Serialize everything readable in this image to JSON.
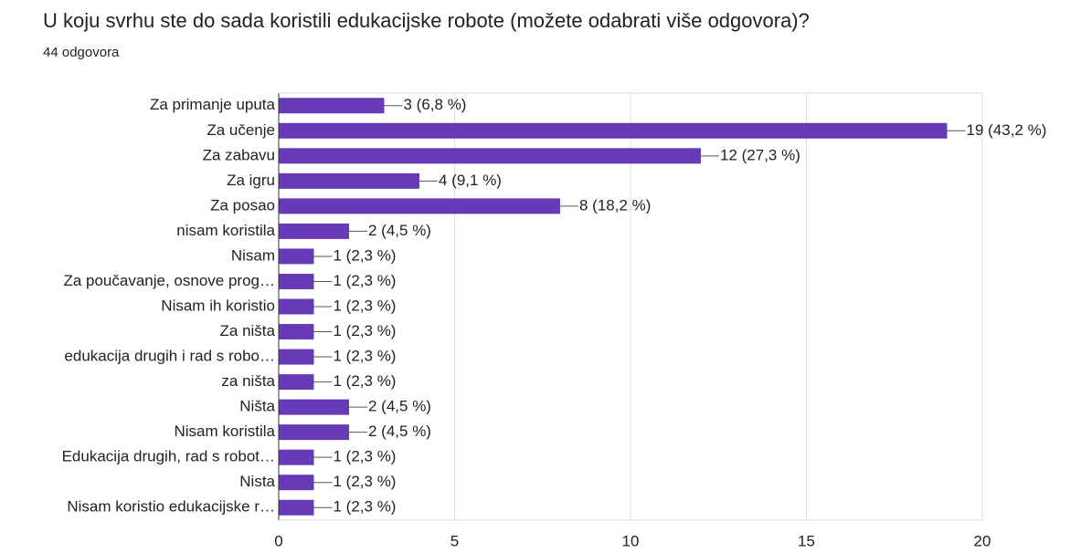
{
  "chart_data": {
    "type": "bar",
    "orientation": "horizontal",
    "title": "U koju svrhu ste do sada koristili edukacijske robote (možete odabrati više odgovora)?",
    "subtitle": "44 odgovora",
    "categories": [
      "Za primanje uputa",
      "Za učenje",
      "Za zabavu",
      "Za igru",
      "Za posao",
      "nisam koristila",
      "Nisam",
      "Za poučavanje, osnove prog…",
      "Nisam ih koristio",
      "Za ništa",
      "edukacija drugih i rad s robo…",
      "za ništa",
      "Ništa",
      "Nisam koristila",
      "Edukacija drugih, rad s robot…",
      "Nista",
      "Nisam koristio edukacijske r…"
    ],
    "values": [
      3,
      19,
      12,
      4,
      8,
      2,
      1,
      1,
      1,
      1,
      1,
      1,
      2,
      2,
      1,
      1,
      1
    ],
    "value_labels": [
      "3 (6,8 %)",
      "19 (43,2 %)",
      "12 (27,3 %)",
      "4 (9,1 %)",
      "8 (18,2 %)",
      "2 (4,5 %)",
      "1 (2,3 %)",
      "1 (2,3 %)",
      "1 (2,3 %)",
      "1 (2,3 %)",
      "1 (2,3 %)",
      "1 (2,3 %)",
      "2 (4,5 %)",
      "2 (4,5 %)",
      "1 (2,3 %)",
      "1 (2,3 %)",
      "1 (2,3 %)"
    ],
    "color": "#673ab7",
    "xlim": [
      0,
      20
    ],
    "xticks": [
      0,
      5,
      10,
      15,
      20
    ],
    "grid": true
  }
}
